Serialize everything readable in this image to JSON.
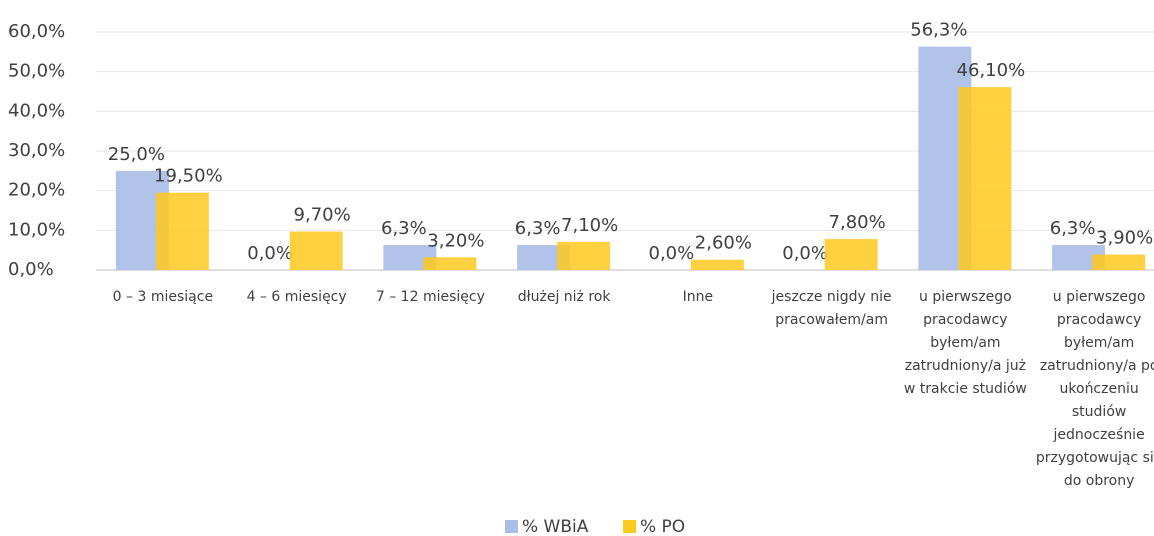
{
  "chart_data": {
    "type": "bar",
    "categories": [
      "0 – 3 miesiące",
      "4 – 6 miesięcy",
      "7 – 12 miesięcy",
      "dłużej niż rok",
      "Inne",
      "jeszcze nigdy nie pracowałem/am",
      "u pierwszego pracodawcy byłem/am zatrudniony/a już w trakcie studiów",
      "u pierwszego pracodawcy byłem/am zatrudniony/a po ukończeniu studiów jednocześnie przygotowując się do obrony"
    ],
    "series": [
      {
        "name": "% WBiA",
        "color": "#a9bde6",
        "values": [
          25.0,
          0.0,
          6.3,
          6.3,
          0.0,
          0.0,
          56.3,
          6.3
        ],
        "value_labels": [
          "25,0%",
          "0,0%",
          "6,3%",
          "6,3%",
          "0,0%",
          "0,0%",
          "56,3%",
          "6,3%"
        ]
      },
      {
        "name": "% PO",
        "color": "#ffc91f",
        "values": [
          19.5,
          9.7,
          3.2,
          7.1,
          2.6,
          7.8,
          46.1,
          3.9
        ],
        "value_labels": [
          "19,50%",
          "9,70%",
          "3,20%",
          "7,10%",
          "2,60%",
          "7,80%",
          "46,10%",
          "3,90%"
        ]
      }
    ],
    "ylim": [
      0,
      60
    ],
    "yticks": [
      {
        "value": 0,
        "label": "0,0%"
      },
      {
        "value": 10,
        "label": "10,0%"
      },
      {
        "value": 20,
        "label": "20,0%"
      },
      {
        "value": 30,
        "label": "30,0%"
      },
      {
        "value": 40,
        "label": "40,0%"
      },
      {
        "value": 50,
        "label": "50,0%"
      },
      {
        "value": 60,
        "label": "60,0%"
      }
    ],
    "grid": true,
    "legend": "bottom"
  }
}
